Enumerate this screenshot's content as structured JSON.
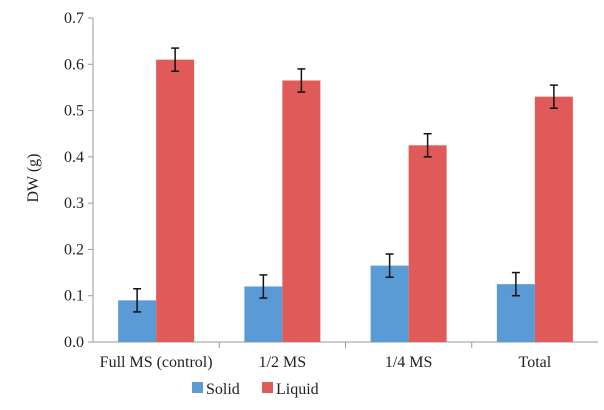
{
  "chart_data": {
    "type": "bar",
    "title": "",
    "xlabel": "",
    "ylabel": "DW (g)",
    "ylim": [
      0,
      0.7
    ],
    "yticks": [
      "0.0",
      "0.1",
      "0.2",
      "0.3",
      "0.4",
      "0.5",
      "0.6",
      "0.7"
    ],
    "categories": [
      "Full MS (control)",
      "1/2 MS",
      "1/4 MS",
      "Total"
    ],
    "series": [
      {
        "name": "Solid",
        "color": "#5b9bd5",
        "values": [
          0.09,
          0.12,
          0.165,
          0.125
        ],
        "errors": [
          0.025,
          0.025,
          0.025,
          0.025
        ]
      },
      {
        "name": "Liquid",
        "color": "#e05a5a",
        "values": [
          0.61,
          0.565,
          0.425,
          0.53
        ],
        "errors": [
          0.025,
          0.025,
          0.025,
          0.025
        ]
      }
    ],
    "grid": false,
    "legend_position": "bottom"
  }
}
